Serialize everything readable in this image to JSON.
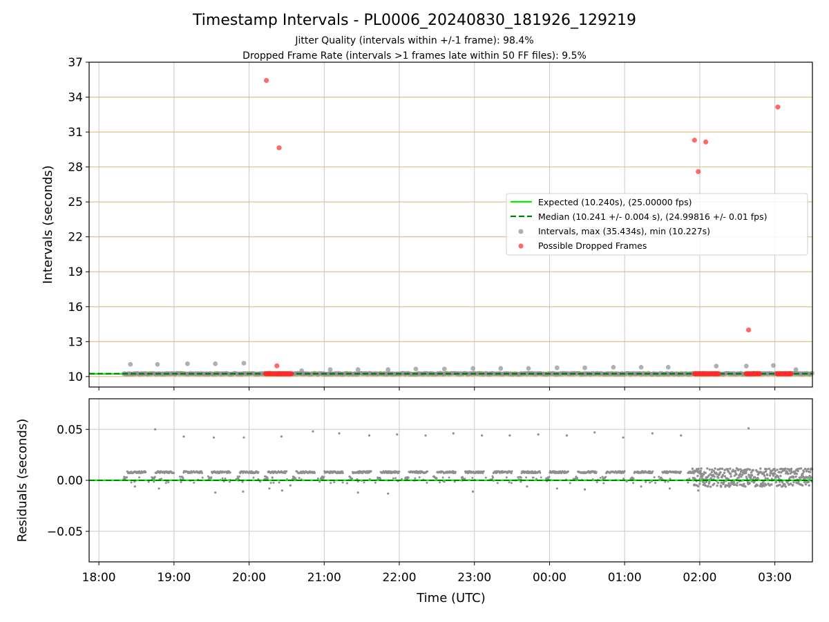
{
  "page": {
    "title": "Timestamp Intervals - PL0006_20240830_181926_129219",
    "subtitle_1": "Jitter Quality (intervals within +/-1 frame): 98.4%",
    "subtitle_2": "Dropped Frame Rate (intervals >1 frames late within 50 FF files): 9.5%"
  },
  "colors": {
    "expected": "#00ee00",
    "median": "#007a00",
    "intervals": "#8f8f8f",
    "dropped": "#ff2a2a",
    "hgrid_top": "#d7bd78",
    "grid": "#c8c8c8"
  },
  "chart_data": [
    {
      "type": "scatter",
      "xlabel": "",
      "ylabel": "Intervals (seconds)",
      "ylim": [
        9.1,
        37
      ],
      "xlim_hours": [
        17.87,
        27.5
      ],
      "yticks": [
        "10",
        "13",
        "16",
        "19",
        "22",
        "25",
        "28",
        "31",
        "34",
        "37"
      ],
      "grid": true,
      "legend_position": "center-right",
      "legend": [
        "Expected (10.240s), (25.00000 fps)",
        "Median (10.241 +/- 0.004 s), (24.99816 +/- 0.01 fps)",
        "Intervals, max (35.434s), min (10.227s)",
        "Possible Dropped Frames"
      ],
      "series": [
        {
          "name": "Expected (10.240s), (25.00000 fps)",
          "kind": "hline",
          "y": 10.24
        },
        {
          "name": "Median (10.241 +/- 0.004 s), (24.99816 +/- 0.01 fps)",
          "kind": "hline",
          "y": 10.241
        },
        {
          "name": "Intervals, max (35.434s), min (10.227s)",
          "kind": "scatter",
          "band": {
            "x_start": 18.33,
            "x_end": 27.5,
            "y": 10.24
          },
          "points": [
            [
              18.42,
              11.05
            ],
            [
              18.78,
              11.05
            ],
            [
              19.18,
              11.1
            ],
            [
              19.55,
              11.1
            ],
            [
              19.93,
              11.15
            ],
            [
              20.7,
              10.5
            ],
            [
              21.08,
              10.6
            ],
            [
              21.45,
              10.6
            ],
            [
              21.85,
              10.6
            ],
            [
              22.22,
              10.65
            ],
            [
              22.6,
              10.65
            ],
            [
              22.98,
              10.7
            ],
            [
              23.35,
              10.7
            ],
            [
              23.72,
              10.7
            ],
            [
              24.1,
              10.75
            ],
            [
              24.47,
              10.75
            ],
            [
              24.85,
              10.8
            ],
            [
              25.22,
              10.8
            ],
            [
              25.58,
              10.8
            ],
            [
              26.22,
              10.9
            ],
            [
              26.62,
              10.9
            ],
            [
              26.98,
              10.95
            ],
            [
              27.28,
              10.6
            ]
          ]
        },
        {
          "name": "Possible Dropped Frames",
          "kind": "scatter",
          "points": [
            [
              20.23,
              35.43
            ],
            [
              20.4,
              29.65
            ],
            [
              20.37,
              10.92
            ],
            [
              25.93,
              30.3
            ],
            [
              25.98,
              27.6
            ],
            [
              26.08,
              30.15
            ],
            [
              26.65,
              14.0
            ],
            [
              27.04,
              33.15
            ]
          ],
          "clusters": [
            [
              20.22,
              20.57
            ],
            [
              25.93,
              26.25
            ],
            [
              26.62,
              26.8
            ],
            [
              27.03,
              27.22
            ]
          ],
          "cluster_y": 10.24
        }
      ]
    },
    {
      "type": "scatter",
      "xlabel": "Time (UTC)",
      "ylabel": "Residuals (seconds)",
      "ylim": [
        -0.08,
        0.08
      ],
      "yticks": [
        "0.05",
        "0.00",
        "−0.05"
      ],
      "xticks": [
        "18:00",
        "19:00",
        "20:00",
        "21:00",
        "22:00",
        "23:00",
        "00:00",
        "01:00",
        "02:00",
        "03:00"
      ],
      "grid": true,
      "series": [
        {
          "name": "",
          "kind": "hline",
          "y": 0.0
        },
        {
          "name": "",
          "kind": "scatter",
          "outliers_high": [
            [
              18.75,
              0.05
            ],
            [
              19.13,
              0.043
            ],
            [
              19.53,
              0.042
            ],
            [
              19.93,
              0.042
            ],
            [
              20.43,
              0.043
            ],
            [
              20.85,
              0.048
            ],
            [
              21.2,
              0.046
            ],
            [
              21.6,
              0.044
            ],
            [
              21.97,
              0.045
            ],
            [
              22.35,
              0.044
            ],
            [
              22.72,
              0.046
            ],
            [
              23.1,
              0.044
            ],
            [
              23.47,
              0.044
            ],
            [
              23.85,
              0.045
            ],
            [
              24.23,
              0.044
            ],
            [
              24.6,
              0.047
            ],
            [
              24.98,
              0.042
            ],
            [
              25.37,
              0.046
            ],
            [
              25.75,
              0.044
            ],
            [
              26.65,
              0.051
            ]
          ],
          "outliers_low": [
            [
              18.48,
              -0.006
            ],
            [
              18.8,
              -0.008
            ],
            [
              19.55,
              -0.012
            ],
            [
              19.92,
              -0.011
            ],
            [
              20.27,
              -0.008
            ],
            [
              20.44,
              -0.01
            ],
            [
              20.55,
              -0.005
            ],
            [
              21.45,
              -0.012
            ],
            [
              21.85,
              -0.013
            ],
            [
              22.98,
              -0.011
            ],
            [
              23.7,
              -0.006
            ],
            [
              24.1,
              -0.008
            ],
            [
              24.47,
              -0.009
            ],
            [
              25.22,
              -0.006
            ],
            [
              25.6,
              -0.008
            ],
            [
              25.98,
              -0.01
            ]
          ]
        }
      ]
    }
  ]
}
